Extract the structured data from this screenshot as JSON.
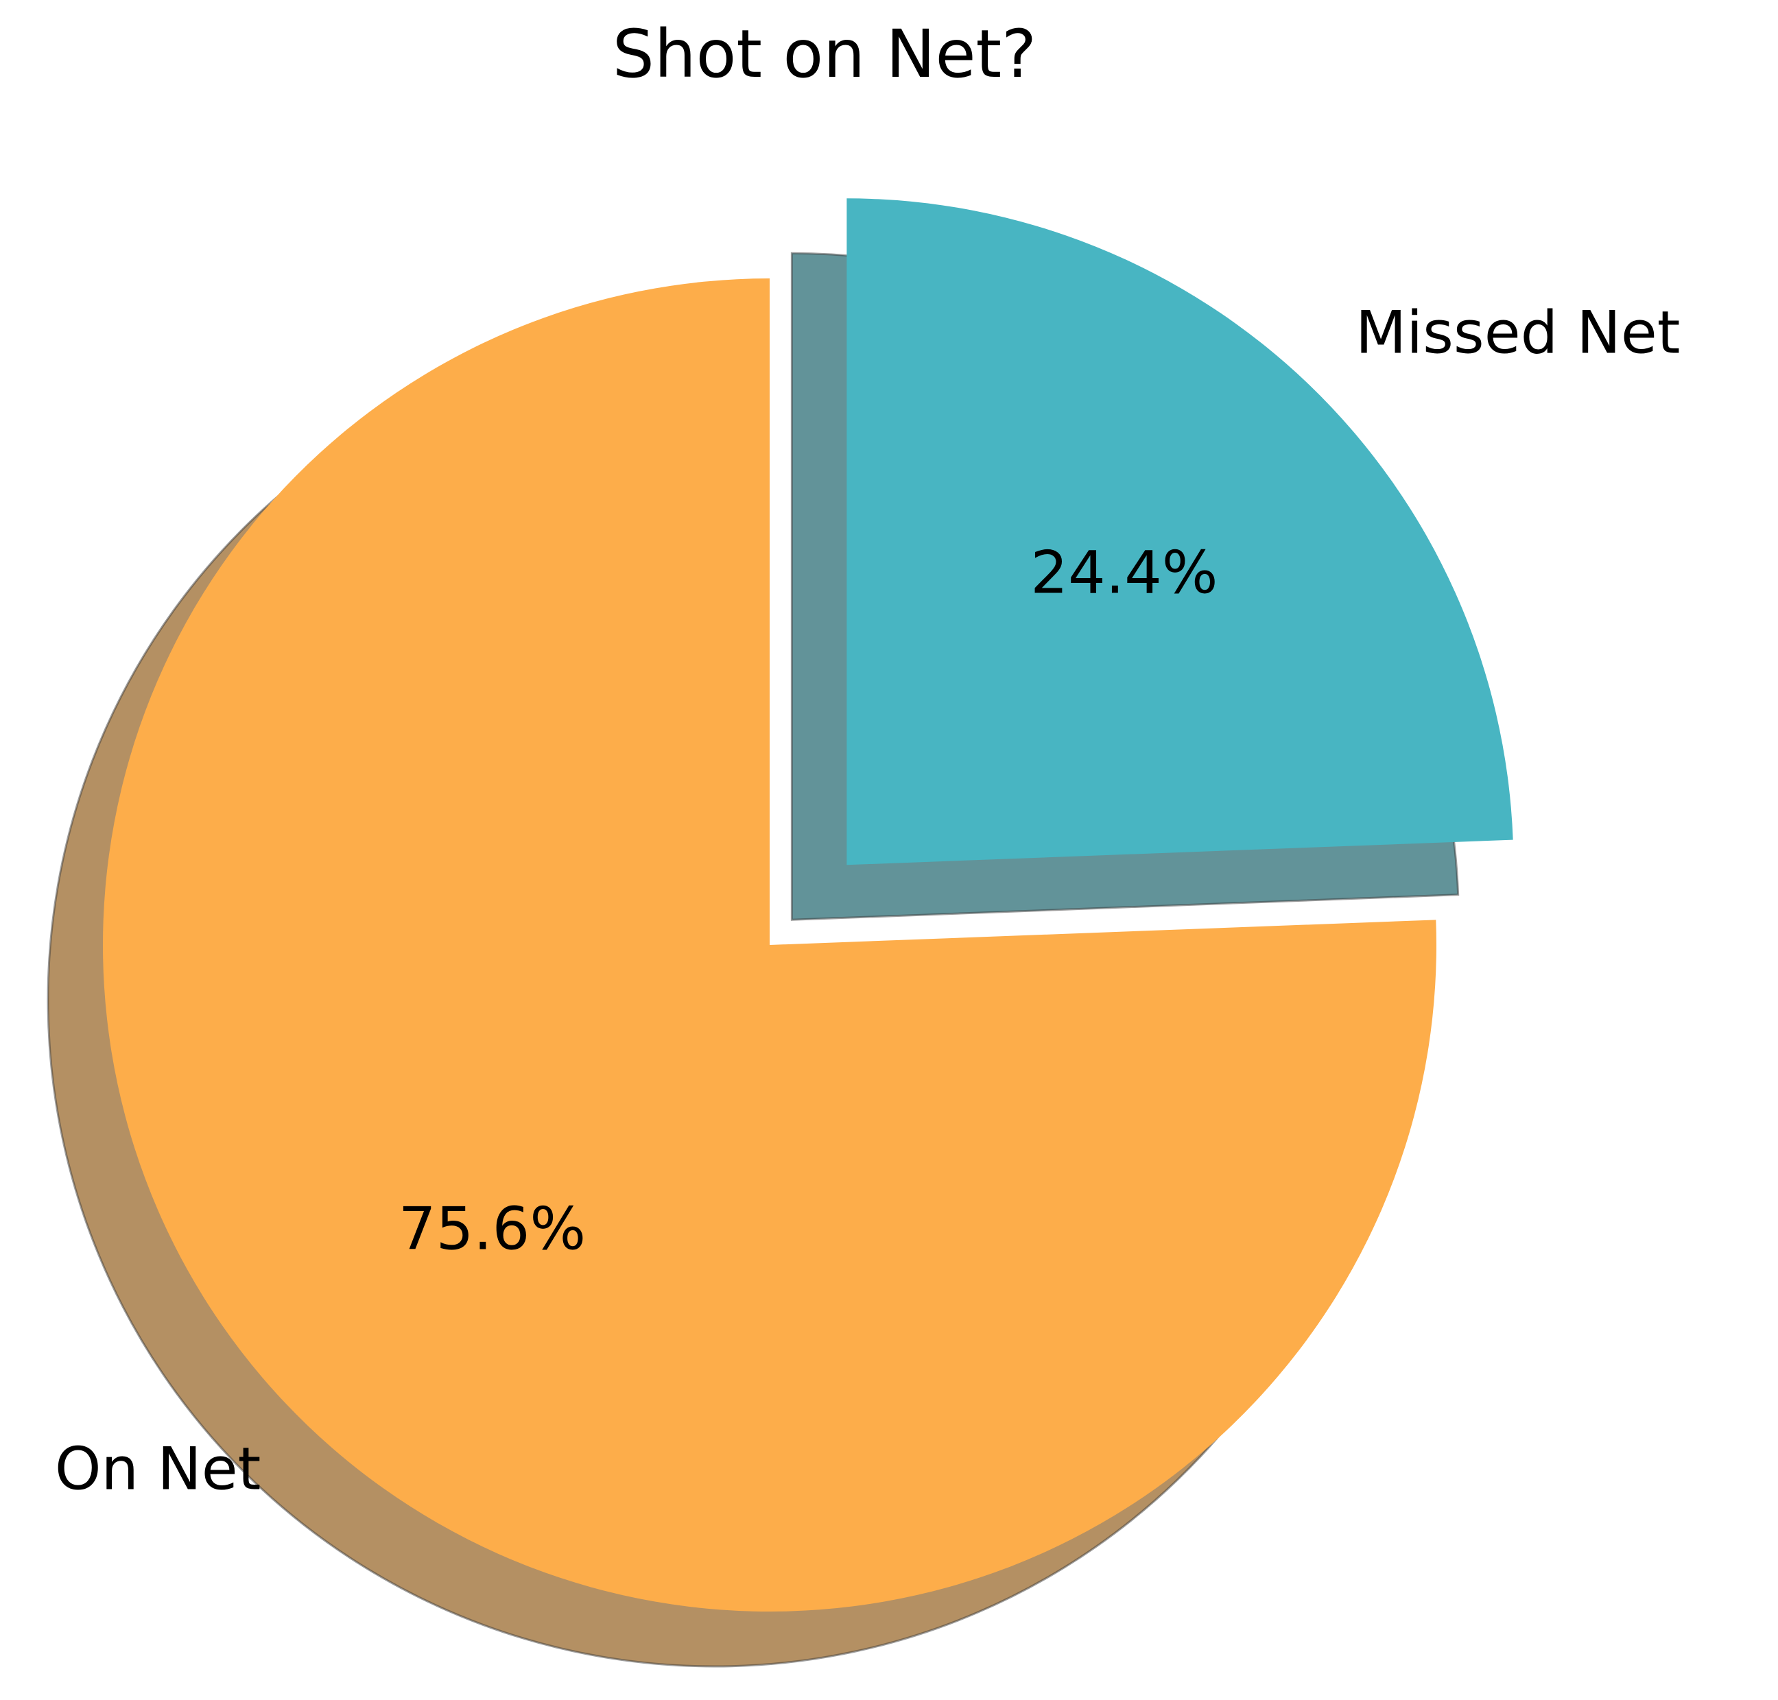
{
  "chart_data": {
    "type": "pie",
    "title": "Shot on Net?",
    "slices": [
      {
        "label": "On Net",
        "value": 75.6,
        "pct_label": "75.6%",
        "color": "#FDAD4A",
        "exploded": false
      },
      {
        "label": "Missed Net",
        "value": 24.4,
        "pct_label": "24.4%",
        "color": "#48B5C2",
        "exploded": true
      }
    ],
    "shadow": true,
    "start_angle_deg": 90,
    "direction": "counterclockwise"
  }
}
